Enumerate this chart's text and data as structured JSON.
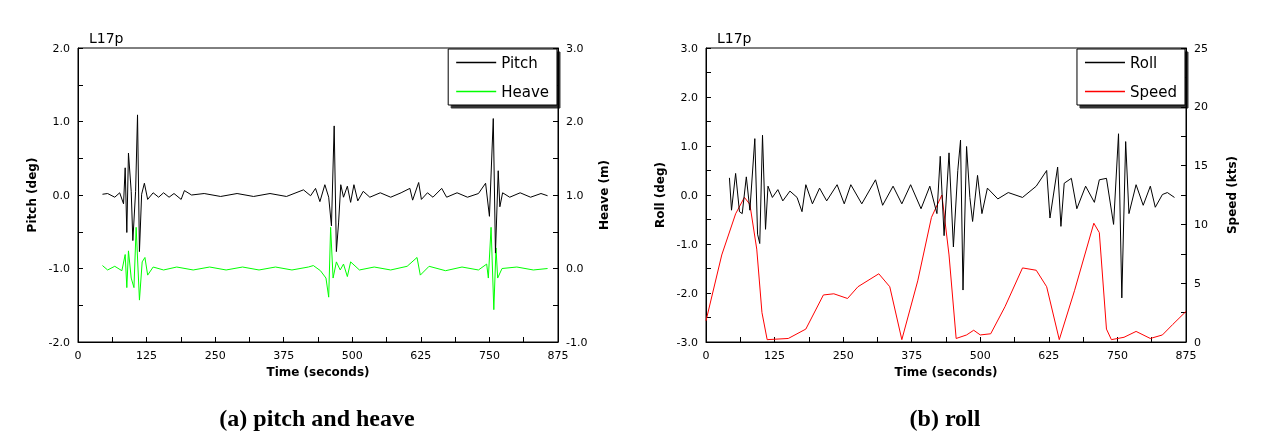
{
  "chart_data": [
    {
      "type": "line",
      "title": "L17p",
      "xlabel": "Time (seconds)",
      "ylabel": "Pitch (deg)",
      "y2label": "Heave (m)",
      "annotations": [
        "(a) pitch and heave"
      ],
      "xlim": [
        0,
        875
      ],
      "xticks": [
        0,
        {
          "value": 62.5,
          "label": null
        },
        125,
        {
          "value": 187.5,
          "label": null
        },
        250,
        {
          "value": 312.5,
          "label": null
        },
        375,
        {
          "value": 437.5,
          "label": null
        },
        500,
        {
          "value": 562.5,
          "label": null
        },
        625,
        {
          "value": 687.5,
          "label": null
        },
        750,
        {
          "value": 812.5,
          "label": null
        },
        875
      ],
      "ylim": [
        -2,
        2
      ],
      "yticks": [
        {
          "value": -2,
          "label": "-2.0"
        },
        {
          "value": -1.5,
          "label": null
        },
        {
          "value": -1,
          "label": "-1.0"
        },
        {
          "value": -0.5,
          "label": null
        },
        {
          "value": 0,
          "label": "0.0"
        },
        {
          "value": 0.5,
          "label": null
        },
        {
          "value": 1,
          "label": "1.0"
        },
        {
          "value": 1.5,
          "label": null
        },
        {
          "value": 2,
          "label": "2.0"
        }
      ],
      "y2lim": [
        -1,
        3
      ],
      "y2ticks": [
        {
          "value": -1,
          "label": "-1.0"
        },
        {
          "value": -0.5,
          "label": null
        },
        {
          "value": 0,
          "label": "0.0"
        },
        {
          "value": 0.5,
          "label": null
        },
        {
          "value": 1,
          "label": "1.0"
        },
        {
          "value": 1.5,
          "label": null
        },
        {
          "value": 2,
          "label": "2.0"
        },
        {
          "value": 2.5,
          "label": null
        },
        {
          "value": 3,
          "label": "3.0"
        }
      ],
      "grid": false,
      "legend": "top right",
      "marker": "none",
      "line_style": "solid",
      "series": [
        {
          "name": "Pitch",
          "color": "#000000",
          "x": [
            44.6,
            54,
            67,
            76,
            83,
            86,
            89,
            92,
            97,
            100,
            105,
            108.5,
            112,
            116,
            121,
            127,
            137,
            147,
            156,
            166,
            175,
            188,
            194,
            207,
            230,
            260,
            290,
            320,
            350,
            380,
            411,
            424,
            433,
            441,
            450,
            457,
            462,
            467,
            471,
            475,
            479,
            484,
            491,
            497,
            503,
            510,
            520,
            532,
            551,
            570,
            589,
            605,
            610,
            621,
            626,
            637,
            647,
            663,
            672,
            691,
            710,
            730,
            743,
            750,
            757,
            761,
            766,
            769,
            774,
            787,
            806,
            825,
            844,
            856
          ],
          "values": [
            0.01,
            0.02,
            -0.03,
            0.03,
            -0.12,
            0.37,
            -0.51,
            0.57,
            0.05,
            -0.62,
            0.05,
            1.09,
            -0.77,
            0.01,
            0.16,
            -0.06,
            0.03,
            -0.03,
            0.03,
            -0.03,
            0.02,
            -0.06,
            0.06,
            0,
            0.02,
            -0.02,
            0.02,
            -0.02,
            0.02,
            -0.02,
            0.07,
            -0.01,
            0.09,
            -0.09,
            0.14,
            -0.03,
            -0.42,
            0.94,
            -0.77,
            -0.38,
            0.14,
            -0.03,
            0.12,
            -0.1,
            0.14,
            -0.08,
            0.05,
            -0.03,
            0.03,
            -0.03,
            0.03,
            0.09,
            -0.07,
            0.17,
            -0.06,
            0.03,
            -0.03,
            0.09,
            -0.03,
            0.03,
            -0.03,
            0.02,
            0.16,
            -0.29,
            1.04,
            -0.79,
            0.33,
            -0.16,
            0.03,
            -0.03,
            0.03,
            -0.03,
            0.02,
            -0.01
          ]
        },
        {
          "name": "Heave",
          "color": "#00ff00",
          "axis": "y2",
          "x": [
            44.6,
            54,
            67,
            80,
            86,
            89,
            92,
            97,
            102,
            106,
            112,
            117,
            122,
            127,
            137,
            156,
            180,
            210,
            240,
            270,
            300,
            330,
            360,
            390,
            420,
            429,
            442,
            452,
            457,
            460.5,
            465,
            471,
            478,
            484,
            491,
            497,
            513,
            540,
            570,
            600,
            618,
            624,
            640,
            670,
            700,
            730,
            745,
            748,
            753,
            758,
            762,
            765,
            773,
            800,
            830,
            856
          ],
          "values": [
            0.04,
            -0.02,
            0.03,
            -0.03,
            0.19,
            -0.26,
            0.24,
            -0.13,
            -0.26,
            0.56,
            -0.43,
            0.09,
            0.15,
            -0.09,
            0.02,
            -0.02,
            0.02,
            -0.02,
            0.02,
            -0.02,
            0.02,
            -0.02,
            0.02,
            -0.02,
            0.02,
            0.04,
            -0.03,
            -0.13,
            -0.39,
            0.56,
            -0.13,
            0.09,
            -0.02,
            0.06,
            -0.11,
            0.09,
            -0.02,
            0.02,
            -0.02,
            0.03,
            0.15,
            -0.09,
            0.03,
            -0.03,
            0.02,
            -0.02,
            0.06,
            -0.13,
            0.56,
            -0.56,
            0.28,
            -0.13,
            0,
            0.02,
            -0.02,
            0
          ]
        }
      ]
    },
    {
      "type": "line",
      "title": "L17p",
      "xlabel": "Time (seconds)",
      "ylabel": "Roll (deg)",
      "y2label": "Speed (kts)",
      "annotations": [
        "(b) roll"
      ],
      "xlim": [
        0,
        875
      ],
      "xticks": [
        0,
        {
          "value": 62.5,
          "label": null
        },
        125,
        {
          "value": 187.5,
          "label": null
        },
        250,
        {
          "value": 312.5,
          "label": null
        },
        375,
        {
          "value": 437.5,
          "label": null
        },
        500,
        {
          "value": 562.5,
          "label": null
        },
        625,
        {
          "value": 687.5,
          "label": null
        },
        750,
        {
          "value": 812.5,
          "label": null
        },
        875
      ],
      "ylim": [
        -3,
        3
      ],
      "yticks": [
        {
          "value": -3,
          "label": "-3.0"
        },
        {
          "value": -2.5,
          "label": null
        },
        {
          "value": -2,
          "label": "-2.0"
        },
        {
          "value": -1.5,
          "label": null
        },
        {
          "value": -1,
          "label": "-1.0"
        },
        {
          "value": -0.5,
          "label": null
        },
        {
          "value": 0,
          "label": "0.0"
        },
        {
          "value": 0.5,
          "label": null
        },
        {
          "value": 1,
          "label": "1.0"
        },
        {
          "value": 1.5,
          "label": null
        },
        {
          "value": 2,
          "label": "2.0"
        },
        {
          "value": 2.5,
          "label": null
        },
        {
          "value": 3,
          "label": "3.0"
        }
      ],
      "y2lim": [
        0,
        25
      ],
      "y2ticks": [
        0,
        {
          "value": 2.5,
          "label": null
        },
        5,
        {
          "value": 7.5,
          "label": null
        },
        10,
        {
          "value": 12.5,
          "label": null
        },
        15,
        {
          "value": 17.5,
          "label": null
        },
        20,
        {
          "value": 22.5,
          "label": null
        },
        25
      ],
      "grid": false,
      "legend": "top right",
      "marker": "none",
      "line_style": "solid",
      "series": [
        {
          "name": "Roll",
          "color": "#000000",
          "x": [
            42.7,
            46.5,
            54,
            61,
            66,
            73.5,
            80,
            89,
            94,
            98,
            103,
            108.5,
            113,
            121,
            131,
            140,
            153,
            166,
            175,
            182,
            194,
            207,
            220,
            239,
            252,
            264,
            284,
            309,
            322,
            341,
            357,
            373,
            392,
            408,
            421,
            427,
            434,
            443,
            451,
            459,
            464,
            468.5,
            475,
            481,
            486,
            495,
            503,
            513,
            532,
            551,
            577,
            602,
            621,
            627,
            641,
            647,
            653,
            666,
            676,
            692,
            708,
            717,
            730,
            743,
            752,
            758,
            765,
            771,
            784,
            797,
            810,
            819,
            832,
            841,
            854
          ],
          "values": [
            0.35,
            -0.31,
            0.44,
            -0.34,
            -0.38,
            0.37,
            -0.31,
            1.15,
            -0.8,
            -0.99,
            1.22,
            -0.7,
            0.18,
            -0.05,
            0.11,
            -0.12,
            0.08,
            -0.05,
            -0.34,
            0.21,
            -0.18,
            0.14,
            -0.12,
            0.21,
            -0.18,
            0.21,
            -0.18,
            0.31,
            -0.21,
            0.18,
            -0.18,
            0.21,
            -0.28,
            0.18,
            -0.38,
            0.79,
            -0.83,
            0.86,
            -1.06,
            0.5,
            1.12,
            -1.94,
            0.99,
            -0.05,
            -0.54,
            0.4,
            -0.38,
            0.14,
            -0.08,
            0.05,
            -0.05,
            0.18,
            0.5,
            -0.47,
            0.57,
            -0.64,
            0.24,
            0.34,
            -0.28,
            0.18,
            -0.15,
            0.31,
            0.34,
            -0.6,
            1.25,
            -2.1,
            1.09,
            -0.38,
            0.21,
            -0.21,
            0.18,
            -0.25,
            0.01,
            0.05,
            -0.05
          ]
        },
        {
          "name": "Speed",
          "color": "#ff0000",
          "axis": "y2",
          "x": [
            0,
            28.7,
            54,
            70,
            80,
            92.5,
            102,
            111.5,
            150,
            182,
            214,
            233,
            258,
            277,
            315,
            335,
            357,
            386,
            411,
            430,
            443,
            456,
            475,
            488,
            500,
            519,
            545,
            577,
            602,
            621,
            644,
            672,
            707,
            717,
            730,
            739,
            762,
            784,
            810,
            832,
            851,
            875
          ],
          "values": [
            1.8,
            7.4,
            10.9,
            12.3,
            11.7,
            7.9,
            2.5,
            0.2,
            0.3,
            1.1,
            4,
            4.1,
            3.7,
            4.7,
            5.8,
            4.7,
            0.2,
            5.2,
            10.6,
            12.5,
            7.4,
            0.3,
            0.6,
            1,
            0.6,
            0.7,
            3,
            6.3,
            6.1,
            4.7,
            0.2,
            4.4,
            10.1,
            9.3,
            1.1,
            0.2,
            0.4,
            0.9,
            0.3,
            0.6,
            1.5,
            2.6
          ]
        }
      ]
    }
  ]
}
